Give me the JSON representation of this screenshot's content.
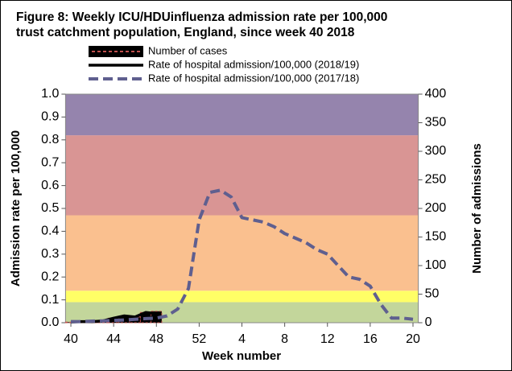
{
  "chart_data": {
    "type": "combo",
    "title": [
      "Figure 8: Weekly ICU/HDUinfluenza admission rate per 100,000",
      "trust catchment population, England, since week 40 2018"
    ],
    "xlabel": "Week number",
    "ylabel": "Admission rate per 100,000",
    "y2label": "Number of admissions",
    "categories": [
      40,
      null,
      null,
      null,
      44,
      null,
      null,
      null,
      48,
      null,
      null,
      null,
      52,
      null,
      null,
      null,
      4,
      null,
      null,
      null,
      8,
      null,
      null,
      null,
      12,
      null,
      null,
      null,
      16,
      null,
      null,
      null,
      20
    ],
    "ylim": [
      0,
      1
    ],
    "yticks": [
      {
        "value": 0,
        "label": "0.0"
      },
      0.1,
      0.2,
      0.3,
      0.4,
      0.5,
      0.6,
      0.7,
      0.8,
      0.9,
      {
        "value": 1,
        "label": "1.0"
      }
    ],
    "y2lim": [
      0,
      400
    ],
    "y2ticks": [
      0,
      50,
      100,
      150,
      200,
      250,
      300,
      350,
      400
    ],
    "bands": [
      {
        "from": 0,
        "to": 0.09,
        "color": "#c3d69b"
      },
      {
        "from": 0.09,
        "to": 0.14,
        "color": "#ffff66"
      },
      {
        "from": 0.14,
        "to": 0.47,
        "color": "#fac08f"
      },
      {
        "from": 0.47,
        "to": 0.82,
        "color": "#d99594"
      },
      {
        "from": 0.82,
        "to": 1,
        "color": "#9584ad"
      }
    ],
    "series": [
      {
        "name": "Number of cases",
        "type": "bar",
        "axis": "y2",
        "color": "#000000",
        "edge": "#c0504d",
        "values": [
          1,
          2,
          2,
          3,
          8,
          12,
          10,
          18,
          20,
          null,
          null,
          null,
          null,
          null,
          null,
          null,
          null,
          null,
          null,
          null,
          null,
          null,
          null,
          null,
          null,
          null,
          null,
          null,
          null,
          null,
          null,
          null,
          null
        ]
      },
      {
        "name": "Rate of hospital admission/100,000 (2018/19)",
        "type": "line",
        "color": "#000000",
        "dash": false,
        "values": [
          0.003,
          0.005,
          0.005,
          0.008,
          0.02,
          0.03,
          0.025,
          0.045,
          0.04,
          null,
          null,
          null,
          null,
          null,
          null,
          null,
          null,
          null,
          null,
          null,
          null,
          null,
          null,
          null,
          null,
          null,
          null,
          null,
          null,
          null,
          null,
          null,
          null
        ]
      },
      {
        "name": "Rate of hospital admission/100,000 (2017/18)",
        "type": "line",
        "color": "#5f5f8f",
        "dash": true,
        "values": [
          0.005,
          0.005,
          0.007,
          0.008,
          0.01,
          0.012,
          0.015,
          0.018,
          0.02,
          0.03,
          0.06,
          0.15,
          0.45,
          0.57,
          0.58,
          0.55,
          0.46,
          0.45,
          0.44,
          0.42,
          0.39,
          0.37,
          0.35,
          0.32,
          0.3,
          0.25,
          0.2,
          0.19,
          0.16,
          0.08,
          0.02,
          0.02,
          0.015
        ]
      }
    ]
  }
}
